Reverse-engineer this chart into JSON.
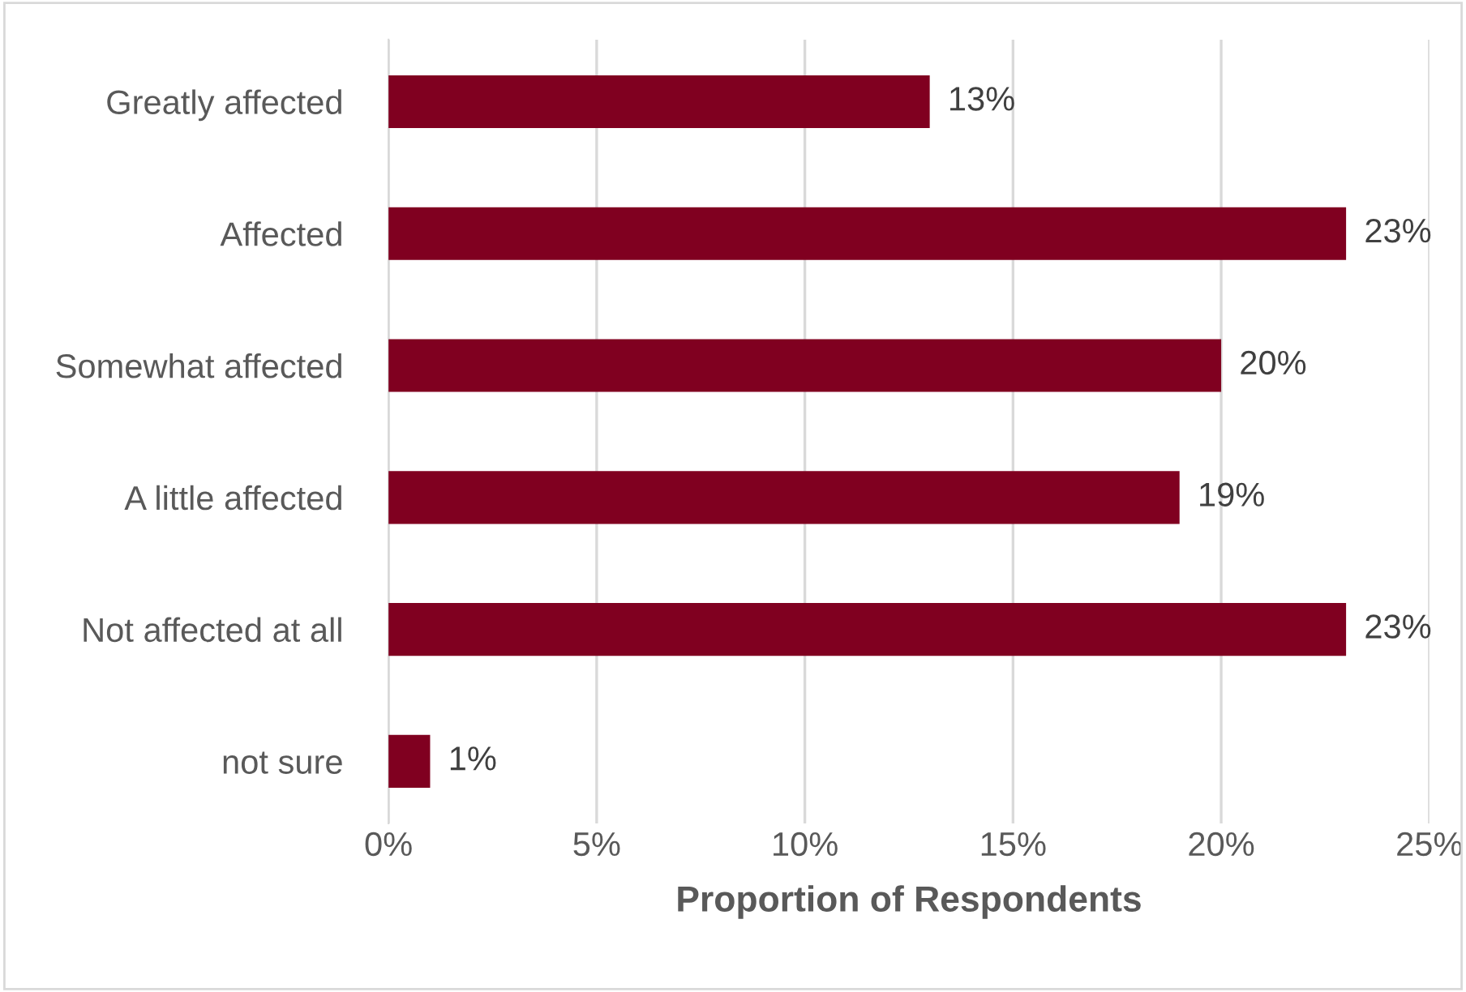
{
  "chart_data": {
    "type": "bar",
    "orientation": "horizontal",
    "xlabel": "Proportion of Respondents",
    "categories": [
      "Greatly affected",
      "Affected",
      "Somewhat affected",
      "A little affected",
      "Not affected at all",
      "not sure"
    ],
    "values": [
      13,
      23,
      20,
      19,
      23,
      1
    ],
    "value_labels": [
      "13%",
      "23%",
      "20%",
      "19%",
      "23%",
      "1%"
    ],
    "color": "#800020",
    "xlim": [
      0,
      25
    ],
    "xticks": [
      {
        "value": 0,
        "label": "0%"
      },
      {
        "value": 5,
        "label": "5%"
      },
      {
        "value": 10,
        "label": "10%"
      },
      {
        "value": 15,
        "label": "15%"
      },
      {
        "value": 20,
        "label": "20%"
      },
      {
        "value": 25,
        "label": "25%"
      }
    ],
    "grid": "x",
    "legend": false
  }
}
